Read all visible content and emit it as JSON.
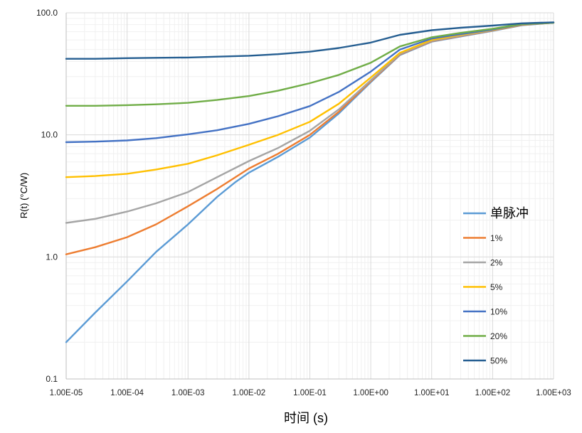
{
  "chart_data": {
    "type": "line",
    "xscale": "log",
    "yscale": "log",
    "xlabel": "时间 (s)",
    "ylabel": "R(t) (°C/W)",
    "xlim": [
      1e-05,
      1000
    ],
    "ylim": [
      0.1,
      100
    ],
    "xtick_values": [
      1e-05,
      0.0001,
      0.001,
      0.01,
      0.1,
      1,
      10,
      100,
      1000
    ],
    "xtick_labels": [
      "1.00E-05",
      "1.00E-04",
      "1.00E-03",
      "1.00E-02",
      "1.00E-01",
      "1.00E+00",
      "1.00E+01",
      "1.00E+02",
      "1.00E+03"
    ],
    "ytick_values": [
      0.1,
      1,
      10,
      100
    ],
    "ytick_labels": [
      "0.1",
      "1.0",
      "10.0",
      "100.0"
    ],
    "grid": true,
    "legend_position": "right",
    "series": [
      {
        "name": "单脉冲",
        "color": "#5B9BD5",
        "points": [
          [
            1e-05,
            0.2
          ],
          [
            3e-05,
            0.35
          ],
          [
            0.0001,
            0.63
          ],
          [
            0.0003,
            1.1
          ],
          [
            0.001,
            1.85
          ],
          [
            0.003,
            3.1
          ],
          [
            0.006,
            4.1
          ],
          [
            0.01,
            4.9
          ],
          [
            0.03,
            6.6
          ],
          [
            0.1,
            9.5
          ],
          [
            0.3,
            15
          ],
          [
            1,
            27
          ],
          [
            3,
            45
          ],
          [
            10,
            58
          ],
          [
            30,
            64
          ],
          [
            100,
            71
          ],
          [
            300,
            79
          ],
          [
            1000,
            83
          ]
        ]
      },
      {
        "name": "1%",
        "color": "#ED7D31",
        "points": [
          [
            1e-05,
            1.05
          ],
          [
            3e-05,
            1.2
          ],
          [
            0.0001,
            1.45
          ],
          [
            0.0003,
            1.85
          ],
          [
            0.001,
            2.6
          ],
          [
            0.003,
            3.6
          ],
          [
            0.01,
            5.3
          ],
          [
            0.03,
            7
          ],
          [
            0.1,
            10
          ],
          [
            0.3,
            15.5
          ],
          [
            1,
            27.5
          ],
          [
            3,
            45.5
          ],
          [
            10,
            58.5
          ],
          [
            30,
            64.5
          ],
          [
            100,
            71.5
          ],
          [
            300,
            79.5
          ],
          [
            1000,
            83
          ]
        ]
      },
      {
        "name": "2%",
        "color": "#A5A5A5",
        "points": [
          [
            1e-05,
            1.9
          ],
          [
            3e-05,
            2.05
          ],
          [
            0.0001,
            2.35
          ],
          [
            0.0003,
            2.75
          ],
          [
            0.001,
            3.4
          ],
          [
            0.003,
            4.5
          ],
          [
            0.01,
            6.1
          ],
          [
            0.03,
            7.8
          ],
          [
            0.1,
            10.8
          ],
          [
            0.3,
            16.2
          ],
          [
            1,
            28
          ],
          [
            3,
            46
          ],
          [
            10,
            59
          ],
          [
            30,
            65
          ],
          [
            100,
            72
          ],
          [
            300,
            80
          ],
          [
            1000,
            83
          ]
        ]
      },
      {
        "name": "5%",
        "color": "#FFC000",
        "points": [
          [
            1e-05,
            4.5
          ],
          [
            3e-05,
            4.6
          ],
          [
            0.0001,
            4.8
          ],
          [
            0.0003,
            5.2
          ],
          [
            0.001,
            5.8
          ],
          [
            0.003,
            6.8
          ],
          [
            0.01,
            8.3
          ],
          [
            0.03,
            10
          ],
          [
            0.1,
            12.8
          ],
          [
            0.3,
            18
          ],
          [
            1,
            29.5
          ],
          [
            3,
            47
          ],
          [
            10,
            60
          ],
          [
            30,
            66
          ],
          [
            100,
            72.5
          ],
          [
            300,
            80
          ],
          [
            1000,
            83
          ]
        ]
      },
      {
        "name": "10%",
        "color": "#4472C4",
        "points": [
          [
            1e-05,
            8.7
          ],
          [
            3e-05,
            8.8
          ],
          [
            0.0001,
            9
          ],
          [
            0.0003,
            9.4
          ],
          [
            0.001,
            10.1
          ],
          [
            0.003,
            10.9
          ],
          [
            0.01,
            12.3
          ],
          [
            0.03,
            14.2
          ],
          [
            0.1,
            17.2
          ],
          [
            0.3,
            22.5
          ],
          [
            1,
            33
          ],
          [
            3,
            50
          ],
          [
            10,
            61.5
          ],
          [
            30,
            67
          ],
          [
            100,
            73
          ],
          [
            300,
            80.5
          ],
          [
            1000,
            83
          ]
        ]
      },
      {
        "name": "20%",
        "color": "#70AD47",
        "points": [
          [
            1e-05,
            17.3
          ],
          [
            3e-05,
            17.3
          ],
          [
            0.0001,
            17.5
          ],
          [
            0.0003,
            17.8
          ],
          [
            0.001,
            18.3
          ],
          [
            0.003,
            19.3
          ],
          [
            0.01,
            20.8
          ],
          [
            0.03,
            23
          ],
          [
            0.1,
            26.5
          ],
          [
            0.3,
            31
          ],
          [
            1,
            39
          ],
          [
            3,
            53
          ],
          [
            10,
            63
          ],
          [
            30,
            68.5
          ],
          [
            100,
            74
          ],
          [
            300,
            81
          ],
          [
            1000,
            83
          ]
        ]
      },
      {
        "name": "50%",
        "color": "#255E91",
        "points": [
          [
            1e-05,
            42
          ],
          [
            3e-05,
            42
          ],
          [
            0.0001,
            42.5
          ],
          [
            0.0003,
            42.8
          ],
          [
            0.001,
            43
          ],
          [
            0.003,
            43.7
          ],
          [
            0.01,
            44.5
          ],
          [
            0.03,
            45.8
          ],
          [
            0.1,
            48
          ],
          [
            0.3,
            51.5
          ],
          [
            1,
            57
          ],
          [
            3,
            66
          ],
          [
            10,
            72
          ],
          [
            30,
            75.5
          ],
          [
            100,
            78.5
          ],
          [
            300,
            82
          ],
          [
            1000,
            83.5
          ]
        ]
      }
    ]
  }
}
